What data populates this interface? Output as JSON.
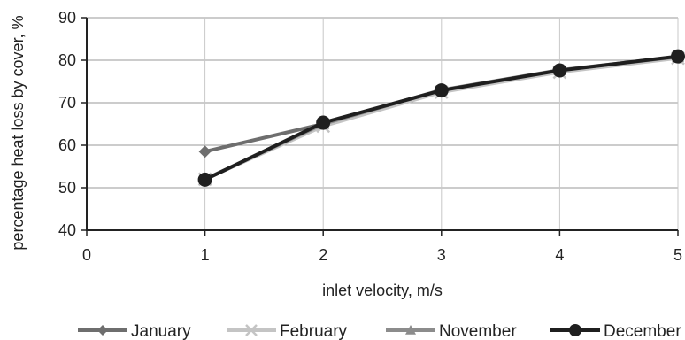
{
  "chart_data": {
    "type": "line",
    "title": "",
    "xlabel": "inlet velocity, m/s",
    "ylabel": "percentage heat loss by cover, %",
    "xlim": [
      0,
      5
    ],
    "ylim": [
      40,
      90
    ],
    "xticks": [
      0,
      1,
      2,
      3,
      4,
      5
    ],
    "yticks": [
      40,
      50,
      60,
      70,
      80,
      90
    ],
    "grid": true,
    "legend_position": "bottom",
    "series": [
      {
        "name": "January",
        "x": [
          1,
          2,
          3,
          4,
          5
        ],
        "y": [
          58.5,
          65.0,
          72.8,
          77.5,
          80.7
        ],
        "color": "#6e6e6e",
        "marker": "diamond"
      },
      {
        "name": "February",
        "x": [
          1,
          2,
          3,
          4,
          5
        ],
        "y": [
          52.0,
          64.5,
          72.5,
          77.2,
          80.5
        ],
        "color": "#c4c4c4",
        "marker": "x"
      },
      {
        "name": "November",
        "x": [
          1,
          2,
          3,
          4,
          5
        ],
        "y": [
          52.0,
          65.0,
          73.0,
          77.7,
          80.8
        ],
        "color": "#8c8c8c",
        "marker": "triangle"
      },
      {
        "name": "December",
        "x": [
          1,
          2,
          3,
          4,
          5
        ],
        "y": [
          51.9,
          65.3,
          72.9,
          77.6,
          80.9
        ],
        "color": "#1f1f1f",
        "marker": "circle"
      }
    ]
  }
}
